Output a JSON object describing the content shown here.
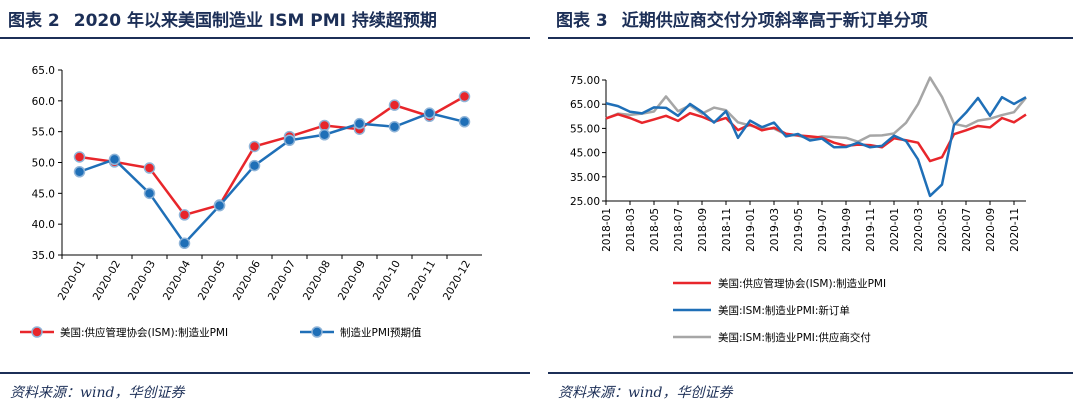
{
  "figures": [
    {
      "number": "图表 2",
      "title": "2020 年以来美国制造业 ISM PMI 持续超预期",
      "source": "资料来源：wind，华创证券"
    },
    {
      "number": "图表 3",
      "title": "近期供应商交付分项斜率高于新订单分项",
      "source": "资料来源：wind，华创证券"
    }
  ],
  "chart_data": [
    {
      "type": "line",
      "title": "",
      "categories": [
        "2020-01",
        "2020-02",
        "2020-03",
        "2020-04",
        "2020-05",
        "2020-06",
        "2020-07",
        "2020-08",
        "2020-09",
        "2020-10",
        "2020-11",
        "2020-12"
      ],
      "ylim": [
        35.0,
        65.0
      ],
      "yticks": [
        "35.0",
        "40.0",
        "45.0",
        "50.0",
        "55.0",
        "60.0",
        "65.0"
      ],
      "legend_position": "bottom",
      "series": [
        {
          "name": "美国:供应管理协会(ISM):制造业PMI",
          "color": "#e8262b",
          "values": [
            50.9,
            50.1,
            49.1,
            41.5,
            43.1,
            52.6,
            54.2,
            56.0,
            55.4,
            59.3,
            57.5,
            60.7
          ]
        },
        {
          "name": "制造业PMI预期值",
          "color": "#1f6fb7",
          "values": [
            48.5,
            50.5,
            45.0,
            36.9,
            43.0,
            49.5,
            53.6,
            54.5,
            56.3,
            55.8,
            58.0,
            56.6
          ]
        }
      ]
    },
    {
      "type": "line",
      "title": "",
      "x": [
        "2018-01",
        "2018-02",
        "2018-03",
        "2018-04",
        "2018-05",
        "2018-06",
        "2018-07",
        "2018-08",
        "2018-09",
        "2018-10",
        "2018-11",
        "2018-12",
        "2019-01",
        "2019-02",
        "2019-03",
        "2019-04",
        "2019-05",
        "2019-06",
        "2019-07",
        "2019-08",
        "2019-09",
        "2019-10",
        "2019-11",
        "2019-12",
        "2020-01",
        "2020-02",
        "2020-03",
        "2020-04",
        "2020-05",
        "2020-06",
        "2020-07",
        "2020-08",
        "2020-09",
        "2020-10",
        "2020-11",
        "2020-12"
      ],
      "xtick_labels": [
        "2018-01",
        "2018-03",
        "2018-05",
        "2018-07",
        "2018-09",
        "2018-11",
        "2019-01",
        "2019-03",
        "2019-05",
        "2019-07",
        "2019-09",
        "2019-11",
        "2020-01",
        "2020-03",
        "2020-05",
        "2020-07",
        "2020-09",
        "2020-11"
      ],
      "ylim": [
        25.0,
        75.0
      ],
      "yticks": [
        "25.00",
        "35.00",
        "45.00",
        "55.00",
        "65.00",
        "75.00"
      ],
      "legend_position": "bottom",
      "series": [
        {
          "name": "美国:供应管理协会(ISM):制造业PMI",
          "color": "#e8262b",
          "values": [
            59.1,
            60.8,
            59.3,
            57.3,
            58.7,
            60.2,
            58.1,
            61.3,
            59.8,
            57.7,
            59.3,
            54.3,
            56.6,
            54.2,
            55.3,
            52.8,
            52.1,
            51.7,
            51.2,
            49.1,
            47.8,
            48.3,
            48.1,
            47.2,
            50.9,
            50.1,
            49.1,
            41.5,
            43.1,
            52.6,
            54.2,
            56.0,
            55.4,
            59.3,
            57.5,
            60.7
          ]
        },
        {
          "name": "美国:ISM:制造业PMI:新订单",
          "color": "#1f6fb7",
          "values": [
            65.4,
            64.2,
            61.9,
            61.2,
            63.7,
            63.5,
            60.2,
            65.1,
            61.8,
            57.4,
            62.1,
            51.1,
            58.2,
            55.5,
            57.4,
            51.7,
            52.7,
            50.0,
            50.8,
            47.2,
            47.3,
            49.1,
            47.2,
            47.8,
            52.0,
            49.8,
            42.2,
            27.1,
            31.8,
            56.4,
            61.5,
            67.6,
            60.2,
            67.9,
            65.1,
            67.9
          ]
        },
        {
          "name": "美国:ISM:制造业PMI:供应商交付",
          "color": "#a6a6a6",
          "values": [
            59.1,
            61.1,
            60.6,
            61.1,
            62.0,
            68.2,
            62.1,
            64.5,
            61.1,
            63.6,
            62.5,
            57.5,
            56.2,
            54.9,
            54.9,
            52.5,
            52.0,
            50.7,
            51.7,
            51.4,
            51.1,
            49.5,
            52.0,
            52.1,
            52.9,
            57.3,
            65.0,
            76.0,
            68.0,
            56.9,
            55.8,
            58.2,
            59.0,
            60.5,
            61.7,
            67.7
          ]
        }
      ]
    }
  ]
}
